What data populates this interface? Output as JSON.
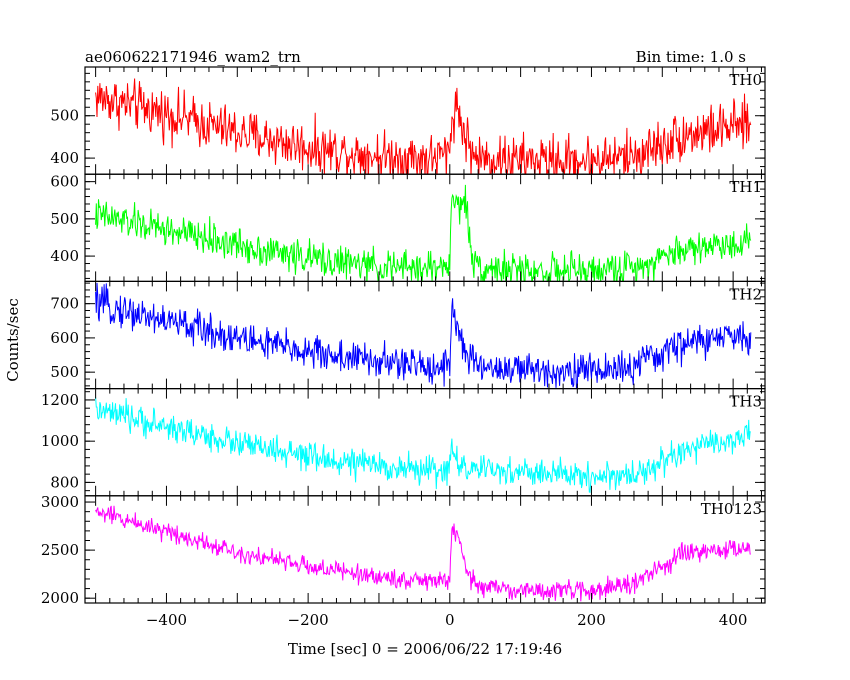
{
  "chart_data": {
    "type": "line",
    "title": "ae060622171946_wam2_trn",
    "subtitle": "Bin time: 1.0 s",
    "xlabel": "Time [sec] 0 = 2006/06/22 17:19:46",
    "ylabel": "Counts/sec",
    "xlim": [
      -515,
      445
    ],
    "xticks": [
      -400,
      -200,
      0,
      200,
      400
    ],
    "x_sampling": {
      "start": -500,
      "end": 425,
      "step": 1
    },
    "grid": false,
    "legend": "none",
    "panels": [
      {
        "name": "TH0",
        "color": "#ff0000",
        "ylim": [
          362,
          615
        ],
        "yticks": [
          400,
          500
        ],
        "trend": [
          [
            -500,
            545
          ],
          [
            -400,
            505
          ],
          [
            -300,
            460
          ],
          [
            -200,
            425
          ],
          [
            -100,
            405
          ],
          [
            -20,
            400
          ],
          [
            0,
            415
          ],
          [
            3,
            500
          ],
          [
            10,
            525
          ],
          [
            20,
            460
          ],
          [
            35,
            400
          ],
          [
            100,
            395
          ],
          [
            200,
            395
          ],
          [
            260,
            405
          ],
          [
            330,
            455
          ],
          [
            425,
            480
          ]
        ],
        "noise": 32
      },
      {
        "name": "TH1",
        "color": "#00ff00",
        "ylim": [
          332,
          620
        ],
        "yticks": [
          400,
          500,
          600
        ],
        "trend": [
          [
            -500,
            510
          ],
          [
            -400,
            470
          ],
          [
            -300,
            430
          ],
          [
            -200,
            395
          ],
          [
            -100,
            370
          ],
          [
            -20,
            368
          ],
          [
            0,
            380
          ],
          [
            3,
            560
          ],
          [
            12,
            530
          ],
          [
            22,
            560
          ],
          [
            30,
            400
          ],
          [
            45,
            370
          ],
          [
            100,
            360
          ],
          [
            200,
            360
          ],
          [
            260,
            370
          ],
          [
            330,
            420
          ],
          [
            425,
            440
          ]
        ],
        "noise": 25
      },
      {
        "name": "TH2",
        "color": "#0000ff",
        "ylim": [
          452,
          765
        ],
        "yticks": [
          500,
          600,
          700
        ],
        "trend": [
          [
            -500,
            700
          ],
          [
            -400,
            650
          ],
          [
            -300,
            600
          ],
          [
            -200,
            560
          ],
          [
            -100,
            530
          ],
          [
            -20,
            515
          ],
          [
            0,
            525
          ],
          [
            3,
            700
          ],
          [
            10,
            640
          ],
          [
            20,
            560
          ],
          [
            35,
            520
          ],
          [
            100,
            505
          ],
          [
            200,
            505
          ],
          [
            260,
            515
          ],
          [
            330,
            585
          ],
          [
            425,
            610
          ]
        ],
        "noise": 28
      },
      {
        "name": "TH3",
        "color": "#00ffff",
        "ylim": [
          735,
          1255
        ],
        "yticks": [
          800,
          1000,
          1200
        ],
        "trend": [
          [
            -500,
            1150
          ],
          [
            -400,
            1070
          ],
          [
            -300,
            990
          ],
          [
            -200,
            920
          ],
          [
            -100,
            880
          ],
          [
            -20,
            855
          ],
          [
            0,
            870
          ],
          [
            3,
            960
          ],
          [
            12,
            900
          ],
          [
            30,
            860
          ],
          [
            100,
            850
          ],
          [
            200,
            830
          ],
          [
            260,
            835
          ],
          [
            330,
            950
          ],
          [
            425,
            1030
          ]
        ],
        "noise": 38
      },
      {
        "name": "TH0123",
        "color": "#ff00ff",
        "ylim": [
          1950,
          3065
        ],
        "yticks": [
          2000,
          2500,
          3000
        ],
        "trend": [
          [
            -500,
            2900
          ],
          [
            -400,
            2700
          ],
          [
            -300,
            2480
          ],
          [
            -200,
            2330
          ],
          [
            -100,
            2220
          ],
          [
            -20,
            2170
          ],
          [
            0,
            2200
          ],
          [
            3,
            2750
          ],
          [
            12,
            2600
          ],
          [
            25,
            2250
          ],
          [
            40,
            2130
          ],
          [
            100,
            2080
          ],
          [
            200,
            2080
          ],
          [
            260,
            2150
          ],
          [
            330,
            2460
          ],
          [
            425,
            2530
          ]
        ],
        "noise": 55
      }
    ]
  }
}
